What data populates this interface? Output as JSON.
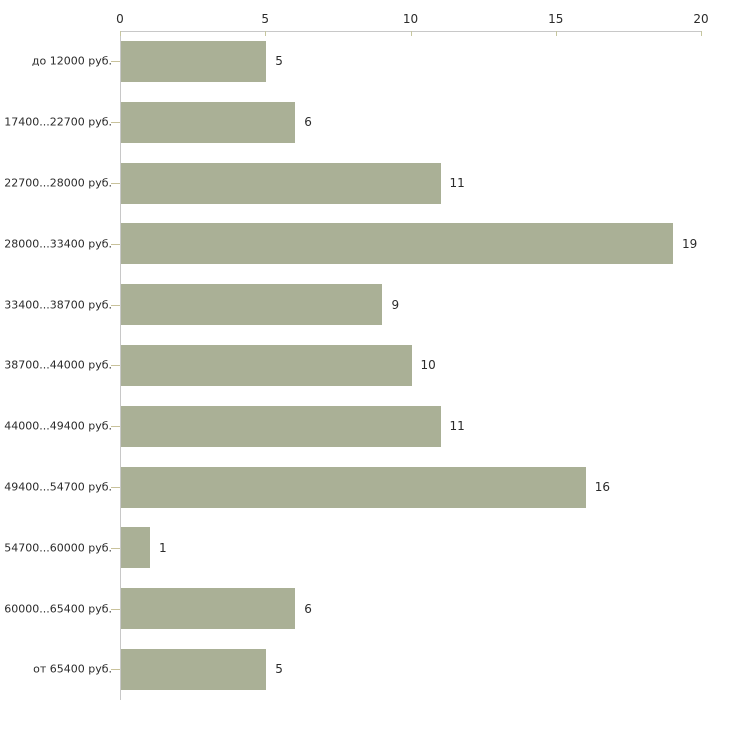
{
  "chart_data": {
    "type": "bar",
    "orientation": "horizontal",
    "categories": [
      "до 12000 руб.",
      "17400...22700 руб.",
      "22700...28000 руб.",
      "28000...33400 руб.",
      "33400...38700 руб.",
      "38700...44000 руб.",
      "44000...49400 руб.",
      "49400...54700 руб.",
      "54700...60000 руб.",
      "60000...65400 руб.",
      "от 65400 руб."
    ],
    "values": [
      5,
      6,
      11,
      19,
      9,
      10,
      11,
      16,
      1,
      6,
      5
    ],
    "x_ticks": [
      0,
      5,
      10,
      15,
      20
    ],
    "xlim": [
      0,
      20
    ],
    "xlabel": "",
    "ylabel": "",
    "title": "",
    "grid": false,
    "legend_position": "none",
    "colors": {
      "bar": "#aab096",
      "axis": "#c8c8c8",
      "category_tick": "#c9c29b",
      "x_tick": "#c6c69e",
      "text": "#2b2b2b",
      "background": "#ffffff"
    }
  }
}
